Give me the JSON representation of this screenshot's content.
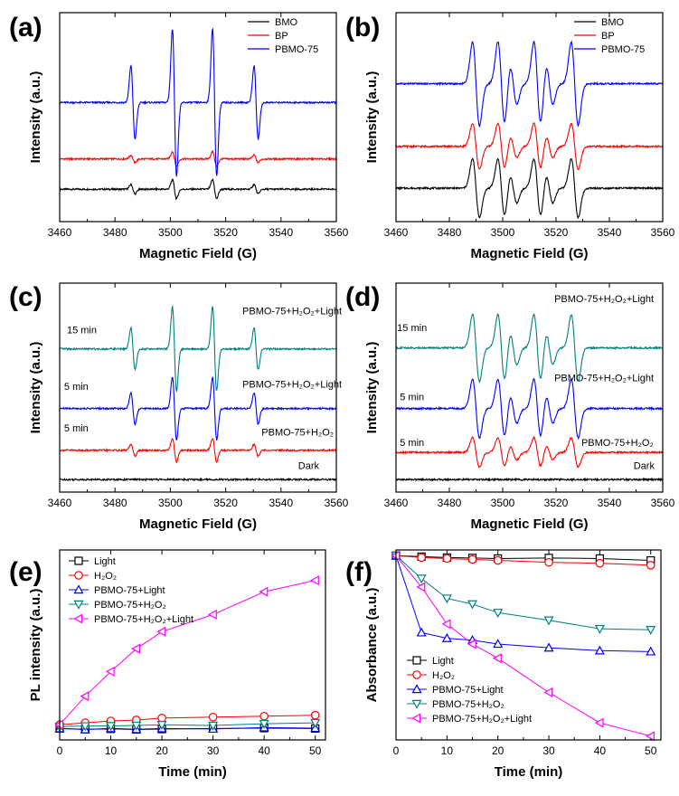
{
  "chart_data": [
    {
      "panel": "(a)",
      "type": "line",
      "xlabel": "Magnetic Field (G)",
      "ylabel": "Intensity (a.u.)",
      "xlim": [
        3460,
        3560
      ],
      "xticks": [
        3460,
        3480,
        3500,
        3520,
        3540,
        3560
      ],
      "ylim": [
        0,
        1
      ],
      "pattern": "dmpo_oh",
      "legend": [
        "BMO",
        "BP",
        "PBMO-75"
      ],
      "series": [
        {
          "name": "BMO",
          "color": "#000000",
          "baseline": 0.155,
          "amplitude": 0.045
        },
        {
          "name": "BP",
          "color": "#ff0000",
          "baseline": 0.3,
          "amplitude": 0.035
        },
        {
          "name": "PBMO-75",
          "color": "#0000ff",
          "baseline": 0.57,
          "amplitude": 0.35
        }
      ],
      "annotations": []
    },
    {
      "panel": "(b)",
      "type": "line",
      "xlabel": "Magnetic Field (G)",
      "ylabel": "Intensity (a.u.)",
      "xlim": [
        3460,
        3560
      ],
      "xticks": [
        3460,
        3480,
        3500,
        3520,
        3540,
        3560
      ],
      "ylim": [
        0,
        1
      ],
      "pattern": "dmpo_o2",
      "legend": [
        "BMO",
        "BP",
        "PBMO-75"
      ],
      "series": [
        {
          "name": "BMO",
          "color": "#000000",
          "baseline": 0.16,
          "amplitude": 0.14
        },
        {
          "name": "BP",
          "color": "#ff0000",
          "baseline": 0.36,
          "amplitude": 0.11
        },
        {
          "name": "PBMO-75",
          "color": "#0000ff",
          "baseline": 0.66,
          "amplitude": 0.2
        }
      ],
      "annotations": []
    },
    {
      "panel": "(c)",
      "type": "line",
      "xlabel": "Magnetic Field (G)",
      "ylabel": "Intensity (a.u.)",
      "xlim": [
        3460,
        3560
      ],
      "xticks": [
        3460,
        3480,
        3500,
        3520,
        3540,
        3560
      ],
      "ylim": [
        0,
        1
      ],
      "pattern": "dmpo_oh",
      "legend": [],
      "series": [
        {
          "name": "Dark",
          "color": "#000000",
          "baseline": 0.06,
          "amplitude": 0.0
        },
        {
          "name": "PBMO-75+H2O2",
          "color": "#ff0000",
          "baseline": 0.2,
          "amplitude": 0.055
        },
        {
          "name": "PBMO-75+H2O2+Light 5 min",
          "color": "#0000ff",
          "baseline": 0.4,
          "amplitude": 0.15
        },
        {
          "name": "PBMO-75+H2O2+Light 15 min",
          "color": "#008080",
          "baseline": 0.685,
          "amplitude": 0.2
        }
      ],
      "annotations": [
        {
          "text": "15 min",
          "x": 3468,
          "y": 0.76,
          "anchor": "middle"
        },
        {
          "text": "PBMO-75+H₂O₂+Light",
          "x": 3544,
          "y": 0.85,
          "anchor": "middle"
        },
        {
          "text": "5 min",
          "x": 3466,
          "y": 0.49,
          "anchor": "middle"
        },
        {
          "text": "PBMO-75+H₂O₂+Light",
          "x": 3544,
          "y": 0.5,
          "anchor": "middle"
        },
        {
          "text": "5 min",
          "x": 3466,
          "y": 0.29,
          "anchor": "middle"
        },
        {
          "text": "PBMO-75+H₂O₂",
          "x": 3546,
          "y": 0.27,
          "anchor": "middle"
        },
        {
          "text": "Dark",
          "x": 3550,
          "y": 0.11,
          "anchor": "middle"
        }
      ]
    },
    {
      "panel": "(d)",
      "type": "line",
      "xlabel": "Magnetic Field (G)",
      "ylabel": "Intensity (a.u.)",
      "xlim": [
        3460,
        3560
      ],
      "xticks": [
        3460,
        3480,
        3500,
        3520,
        3540,
        3560
      ],
      "ylim": [
        0,
        1
      ],
      "pattern": "dmpo_o2",
      "legend": [],
      "series": [
        {
          "name": "Dark",
          "color": "#000000",
          "baseline": 0.06,
          "amplitude": 0.0
        },
        {
          "name": "PBMO-75+H2O2",
          "color": "#ff0000",
          "baseline": 0.19,
          "amplitude": 0.07
        },
        {
          "name": "PBMO-75+H2O2+Light 5 min",
          "color": "#0000ff",
          "baseline": 0.4,
          "amplitude": 0.14
        },
        {
          "name": "PBMO-75+H2O2+Light 15 min",
          "color": "#008080",
          "baseline": 0.69,
          "amplitude": 0.16
        }
      ],
      "annotations": [
        {
          "text": "PBMO-75+H₂O₂+Light",
          "x": 3538,
          "y": 0.91,
          "anchor": "middle"
        },
        {
          "text": "15 min",
          "x": 3466,
          "y": 0.77,
          "anchor": "middle"
        },
        {
          "text": "PBMO-75+H₂O₂+Light",
          "x": 3538,
          "y": 0.53,
          "anchor": "middle"
        },
        {
          "text": "5 min",
          "x": 3466,
          "y": 0.44,
          "anchor": "middle"
        },
        {
          "text": "5 min",
          "x": 3466,
          "y": 0.22,
          "anchor": "middle"
        },
        {
          "text": "PBMO-75+H₂O₂",
          "x": 3543,
          "y": 0.22,
          "anchor": "middle"
        },
        {
          "text": "Dark",
          "x": 3553,
          "y": 0.11,
          "anchor": "middle"
        }
      ]
    },
    {
      "panel": "(e)",
      "type": "line",
      "xlabel": "Time (min)",
      "ylabel": "PL intensity (a.u.)",
      "xlim": [
        0,
        52
      ],
      "xticks": [
        0,
        10,
        20,
        30,
        40,
        50
      ],
      "ylim": [
        0,
        100
      ],
      "legend": [
        "Light",
        "H₂O₂",
        "PBMO-75+Light",
        "PBMO-75+H₂O₂",
        "PBMO-75+H₂O₂+Light"
      ],
      "x": [
        0,
        5,
        10,
        15,
        20,
        30,
        40,
        50
      ],
      "series": [
        {
          "name": "Light",
          "color": "#000000",
          "marker": "square",
          "values": [
            6,
            5.6,
            5.8,
            5.5,
            5.7,
            6.0,
            6.2,
            6.0
          ]
        },
        {
          "name": "H₂O₂",
          "color": "#ff0000",
          "marker": "circle",
          "values": [
            8,
            9,
            10,
            10.5,
            11.5,
            12,
            12.5,
            13
          ]
        },
        {
          "name": "PBMO-75+Light",
          "color": "#0000ff",
          "marker": "triangle-up",
          "values": [
            6,
            5.5,
            6.1,
            5.6,
            6.0,
            5.8,
            6.5,
            6.2
          ]
        },
        {
          "name": "PBMO-75+H₂O₂",
          "color": "#008080",
          "marker": "triangle-down",
          "values": [
            7,
            7.3,
            7.4,
            7.6,
            8.0,
            7.6,
            8.5,
            9.0
          ]
        },
        {
          "name": "PBMO-75+H₂O₂+Light",
          "color": "#ff00ff",
          "marker": "triangle-left",
          "values": [
            8,
            23,
            36,
            48,
            57,
            66,
            78,
            84
          ]
        }
      ]
    },
    {
      "panel": "(f)",
      "type": "line",
      "xlabel": "Time (min)",
      "ylabel": "Absorbance (a.u.)",
      "xlim": [
        0,
        52
      ],
      "xticks": [
        0,
        10,
        20,
        30,
        40,
        50
      ],
      "ylim": [
        0,
        100
      ],
      "legend": [
        "Light",
        "H₂O₂",
        "PBMO-75+Light",
        "PBMO-75+H₂O₂",
        "PBMO-75+H₂O₂+Light"
      ],
      "x": [
        0,
        5,
        10,
        15,
        20,
        30,
        40,
        50
      ],
      "series": [
        {
          "name": "Light",
          "color": "#000000",
          "marker": "square",
          "values": [
            97,
            96.5,
            96,
            95.8,
            95.5,
            95.8,
            95.5,
            94.5
          ]
        },
        {
          "name": "H₂O₂",
          "color": "#ff0000",
          "marker": "circle",
          "values": [
            97,
            96,
            95.5,
            95,
            94.5,
            93.5,
            93,
            92
          ]
        },
        {
          "name": "PBMO-75+Light",
          "color": "#0000ff",
          "marker": "triangle-up",
          "values": [
            97,
            56.5,
            53.5,
            52.5,
            50.5,
            48.5,
            47,
            46.5
          ]
        },
        {
          "name": "PBMO-75+H₂O₂",
          "color": "#008080",
          "marker": "triangle-down",
          "values": [
            97,
            85,
            74.5,
            71.5,
            67,
            63,
            58.5,
            58
          ]
        },
        {
          "name": "PBMO-75+H₂O₂+Light",
          "color": "#ff00ff",
          "marker": "triangle-left",
          "values": [
            97,
            80.5,
            61,
            50.5,
            43,
            25,
            9,
            2
          ]
        }
      ]
    }
  ]
}
